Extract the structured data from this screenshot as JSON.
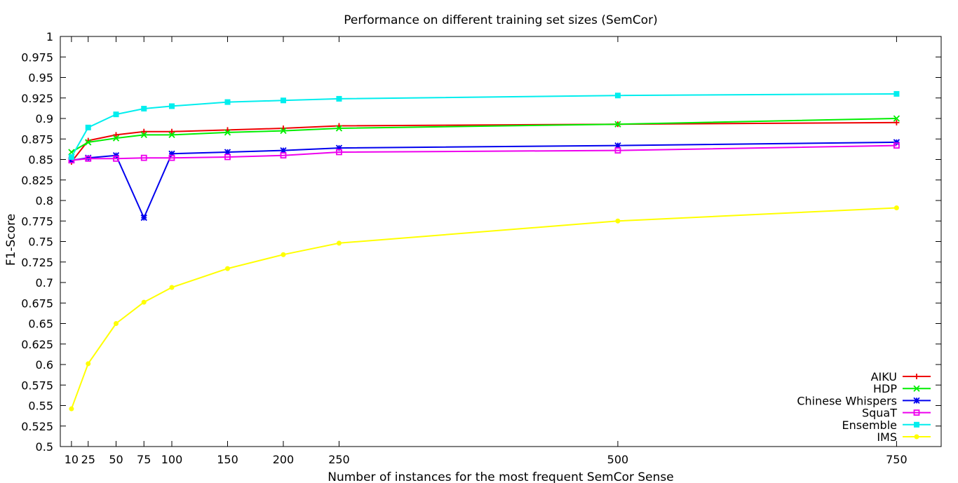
{
  "chart_data": {
    "type": "line",
    "title": "Performance on different training set sizes (SemCor)",
    "xlabel": "Number of instances for the most frequent SemCor Sense",
    "ylabel": "F1-Score",
    "x": [
      10,
      25,
      50,
      75,
      100,
      150,
      200,
      250,
      500,
      750
    ],
    "xticks": [
      10,
      25,
      50,
      75,
      100,
      150,
      200,
      250,
      500,
      750
    ],
    "xtick_labels": [
      "10",
      "25",
      "50",
      "75",
      "100",
      "150",
      "200",
      "250",
      "500",
      "750"
    ],
    "xlim": [
      0,
      790
    ],
    "ylim": [
      0.5,
      1.0
    ],
    "yticks": [
      0.5,
      0.525,
      0.55,
      0.575,
      0.6,
      0.625,
      0.65,
      0.675,
      0.7,
      0.725,
      0.75,
      0.775,
      0.8,
      0.825,
      0.85,
      0.875,
      0.9,
      0.925,
      0.95,
      0.975,
      1.0
    ],
    "ytick_labels": [
      "0.5",
      "0.525",
      "0.55",
      "0.575",
      "0.6",
      "0.625",
      "0.65",
      "0.675",
      "0.7",
      "0.725",
      "0.75",
      "0.775",
      "0.8",
      "0.825",
      "0.85",
      "0.875",
      "0.9",
      "0.925",
      "0.95",
      "0.975",
      "1"
    ],
    "grid": false,
    "legend_position": "bottom-right",
    "series": [
      {
        "name": "AIKU",
        "color": "#ee0000",
        "marker": "plus",
        "values": [
          0.847,
          0.873,
          0.88,
          0.884,
          0.884,
          0.886,
          0.888,
          0.891,
          0.893,
          0.895
        ]
      },
      {
        "name": "HDP",
        "color": "#00ee00",
        "marker": "cross",
        "values": [
          0.859,
          0.871,
          0.876,
          0.88,
          0.88,
          0.883,
          0.885,
          0.888,
          0.893,
          0.9
        ]
      },
      {
        "name": "Chinese Whispers",
        "color": "#0000ee",
        "marker": "asterisk",
        "values": [
          0.849,
          0.852,
          0.855,
          0.779,
          0.857,
          0.859,
          0.861,
          0.864,
          0.867,
          0.871
        ]
      },
      {
        "name": "SquaT",
        "color": "#ee00ee",
        "marker": "open-square",
        "values": [
          0.849,
          0.851,
          0.851,
          0.852,
          0.852,
          0.853,
          0.855,
          0.859,
          0.861,
          0.867
        ]
      },
      {
        "name": "Ensemble",
        "color": "#00eeee",
        "marker": "filled-square",
        "values": [
          0.853,
          0.889,
          0.905,
          0.912,
          0.915,
          0.92,
          0.922,
          0.924,
          0.928,
          0.93
        ]
      },
      {
        "name": "IMS",
        "color": "#ffff00",
        "marker": "filled-circle",
        "values": [
          0.546,
          0.601,
          0.65,
          0.676,
          0.694,
          0.717,
          0.734,
          0.748,
          0.775,
          0.791
        ]
      }
    ]
  }
}
